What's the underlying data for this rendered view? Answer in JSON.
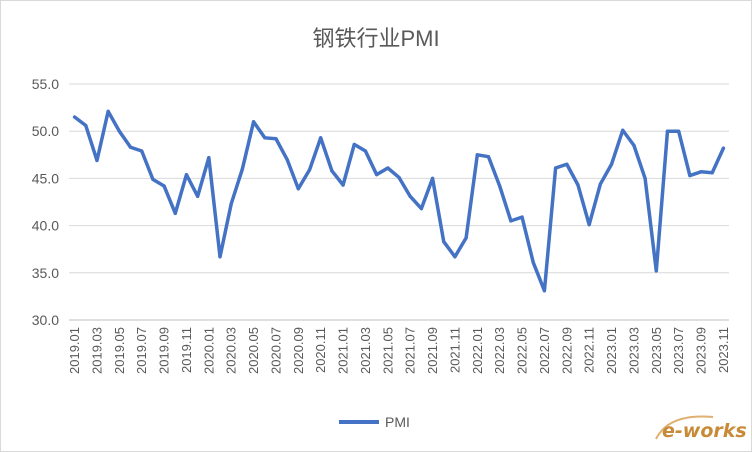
{
  "chart_data": {
    "type": "line",
    "title": "钢铁行业PMI",
    "xlabel": "",
    "ylabel": "",
    "ylim": [
      30,
      55
    ],
    "yticks": [
      "30.0",
      "35.0",
      "40.0",
      "45.0",
      "50.0",
      "55.0"
    ],
    "grid": "horizontal",
    "legend_position": "bottom",
    "x": [
      "2019.01",
      "2019.02",
      "2019.03",
      "2019.04",
      "2019.05",
      "2019.06",
      "2019.07",
      "2019.08",
      "2019.09",
      "2019.10",
      "2019.11",
      "2019.12",
      "2020.01",
      "2020.02",
      "2020.03",
      "2020.04",
      "2020.05",
      "2020.06",
      "2020.07",
      "2020.08",
      "2020.09",
      "2020.10",
      "2020.11",
      "2020.12",
      "2021.01",
      "2021.02",
      "2021.03",
      "2021.04",
      "2021.05",
      "2021.06",
      "2021.07",
      "2021.08",
      "2021.09",
      "2021.10",
      "2021.11",
      "2021.12",
      "2022.01",
      "2022.02",
      "2022.03",
      "2022.04",
      "2022.05",
      "2022.06",
      "2022.07",
      "2022.08",
      "2022.09",
      "2022.10",
      "2022.11",
      "2022.12",
      "2023.01",
      "2023.02",
      "2023.03",
      "2023.04",
      "2023.05",
      "2023.06",
      "2023.07",
      "2023.08",
      "2023.09",
      "2023.10",
      "2023.11"
    ],
    "x_tick_labels": [
      "2019.01",
      "2019.03",
      "2019.05",
      "2019.07",
      "2019.09",
      "2019.11",
      "2020.01",
      "2020.03",
      "2020.05",
      "2020.07",
      "2020.09",
      "2020.11",
      "2021.01",
      "2021.03",
      "2021.05",
      "2021.07",
      "2021.09",
      "2021.11",
      "2022.01",
      "2022.03",
      "2022.05",
      "2022.07",
      "2022.09",
      "2022.11",
      "2023.01",
      "2023.03",
      "2023.05",
      "2023.07",
      "2023.09",
      "2023.11"
    ],
    "series": [
      {
        "name": "PMI",
        "color": "#4472c4",
        "values": [
          51.5,
          50.6,
          46.9,
          52.1,
          50.0,
          48.3,
          47.9,
          44.9,
          44.2,
          41.3,
          45.4,
          43.1,
          47.2,
          36.7,
          42.3,
          46.0,
          51.0,
          49.3,
          49.2,
          47.0,
          43.9,
          45.9,
          49.3,
          45.8,
          44.3,
          48.6,
          47.9,
          45.4,
          46.1,
          45.1,
          43.1,
          41.8,
          45.0,
          38.3,
          36.7,
          38.7,
          47.5,
          47.3,
          44.2,
          40.5,
          40.9,
          36.1,
          33.1,
          46.1,
          46.5,
          44.3,
          40.1,
          44.4,
          46.5,
          50.1,
          48.5,
          45.0,
          35.2,
          50.0,
          50.0,
          45.3,
          45.7,
          45.6,
          48.2
        ]
      }
    ]
  },
  "watermark": {
    "text": "e-works",
    "color": "#c98a38"
  }
}
